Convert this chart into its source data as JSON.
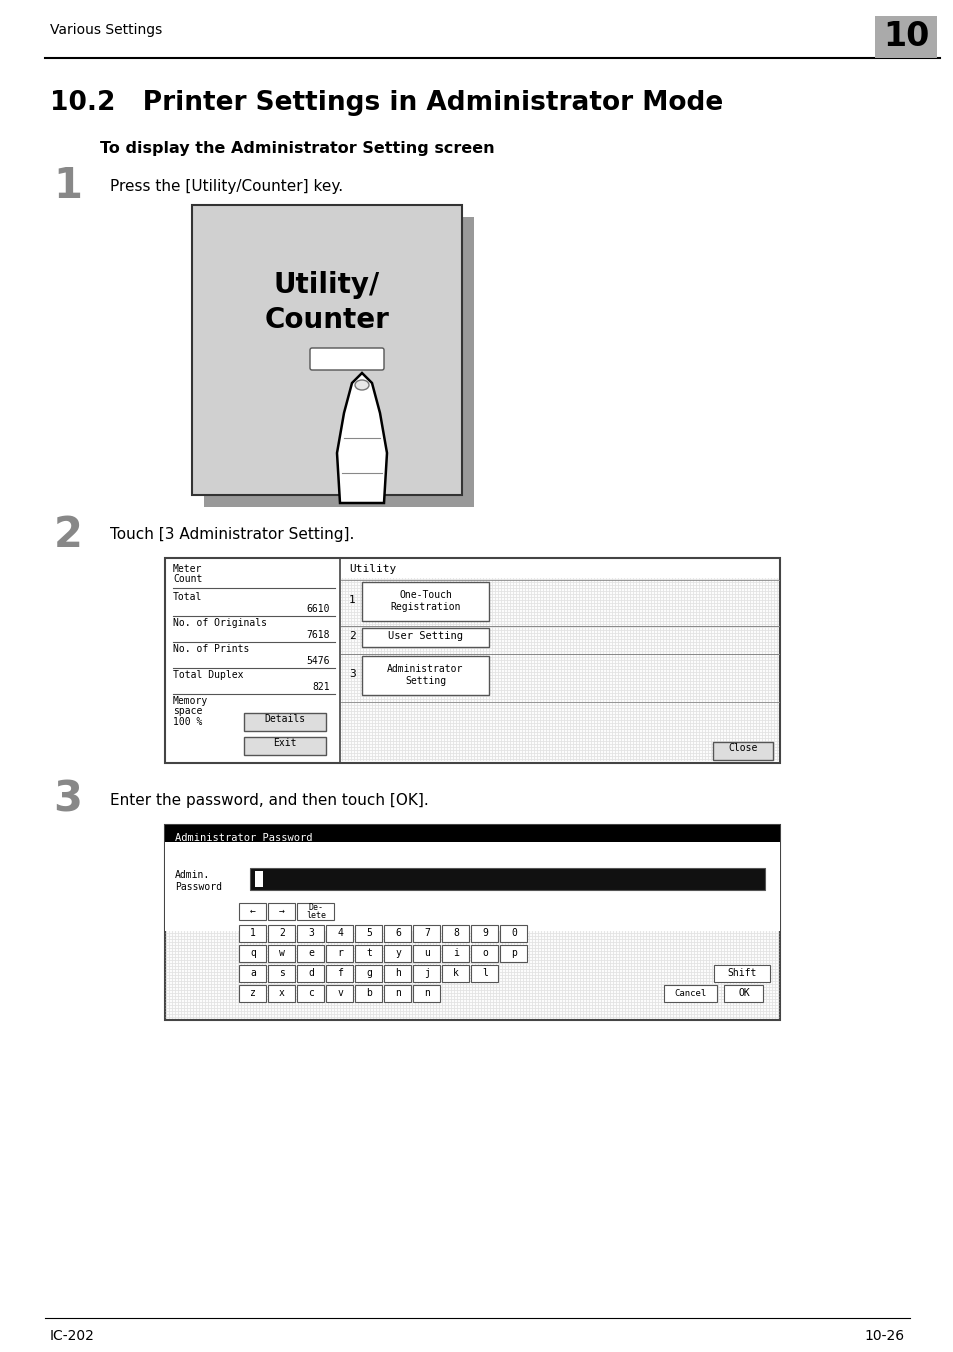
{
  "page_header": "Various Settings",
  "chapter_num": "10",
  "section_title": "10.2   Printer Settings in Administrator Mode",
  "subsection_title": "To display the Administrator Setting screen",
  "step1_num": "1",
  "step1_text": "Press the [Utility/Counter] key.",
  "step2_num": "2",
  "step2_text": "Touch [3 Administrator Setting].",
  "step3_num": "3",
  "step3_text": "Enter the password, and then touch [OK].",
  "footer_left": "IC-202",
  "footer_right": "10-26",
  "bg_color": "#ffffff",
  "text_color": "#000000",
  "chapter_box_color": "#aaaaaa",
  "panel_bg": "#d0d0d0",
  "panel_shadow": "#999999"
}
